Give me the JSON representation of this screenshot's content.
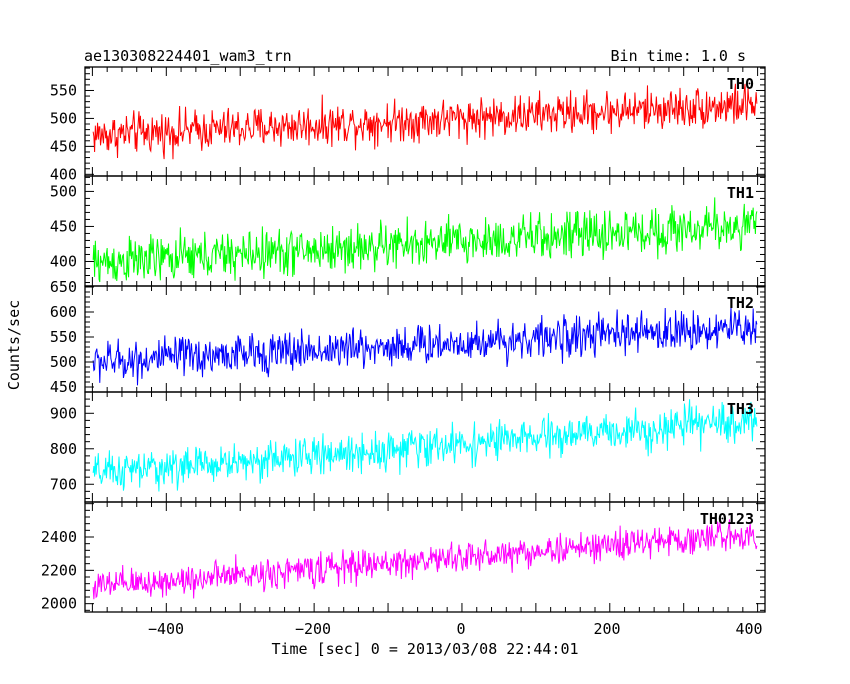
{
  "header": {
    "obs_id": "ae130308224401_wam3_trn",
    "bin_time": "Bin time: 1.0 s"
  },
  "axes": {
    "ylabel": "Counts/sec",
    "xlabel": "Time [sec] 0 = 2013/03/08 22:44:01",
    "x_ticks": [
      "−400",
      "−200",
      "0",
      "200",
      "400"
    ]
  },
  "chart_data": {
    "type": "line",
    "xlabel": "Time [sec] 0 = 2013/03/08 22:44:01",
    "ylabel": "Counts/sec",
    "xlim": [
      -510,
      410
    ],
    "x_start": -499,
    "x_end": 399,
    "x_step": 1,
    "x_ticks": [
      -400,
      -200,
      0,
      200,
      400
    ],
    "panels": [
      {
        "name": "TH0",
        "color": "#ff0000",
        "ylim": [
          397,
          592
        ],
        "y_ticks": [
          400,
          450,
          500,
          550
        ],
        "trend_start": 470,
        "trend_end": 525,
        "noise_amplitude": 55
      },
      {
        "name": "TH1",
        "color": "#00ff00",
        "ylim": [
          365,
          522
        ],
        "y_ticks": [
          400,
          450,
          500
        ],
        "trend_start": 398,
        "trend_end": 452,
        "noise_amplitude": 50
      },
      {
        "name": "TH2",
        "color": "#0000ff",
        "ylim": [
          440,
          652
        ],
        "y_ticks": [
          450,
          500,
          550,
          600,
          650
        ],
        "trend_start": 500,
        "trend_end": 570,
        "noise_amplitude": 60
      },
      {
        "name": "TH3",
        "color": "#00ffff",
        "ylim": [
          650,
          960
        ],
        "y_ticks": [
          700,
          800,
          900
        ],
        "trend_start": 730,
        "trend_end": 880,
        "noise_amplitude": 80
      },
      {
        "name": "TH0123",
        "color": "#ff00ff",
        "ylim": [
          1950,
          2610
        ],
        "y_ticks": [
          2000,
          2200,
          2400
        ],
        "trend_start": 2100,
        "trend_end": 2420,
        "noise_amplitude": 140
      }
    ]
  }
}
